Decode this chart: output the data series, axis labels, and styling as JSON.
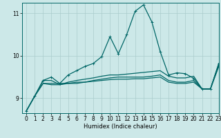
{
  "xlabel": "Humidex (Indice chaleur)",
  "background_color": "#cce8e8",
  "line_color": "#006666",
  "grid_color": "#aacccc",
  "xlim": [
    -0.5,
    23
  ],
  "ylim": [
    8.65,
    11.25
  ],
  "xticks": [
    0,
    1,
    2,
    3,
    4,
    5,
    6,
    7,
    8,
    9,
    10,
    11,
    12,
    13,
    14,
    15,
    16,
    17,
    18,
    19,
    20,
    21,
    22,
    23
  ],
  "yticks": [
    9,
    10,
    11
  ],
  "lines": [
    {
      "x": [
        0,
        1,
        2,
        3,
        4,
        5,
        6,
        7,
        8,
        9,
        10,
        11,
        12,
        13,
        14,
        15,
        16,
        17,
        18,
        19,
        20,
        21,
        22,
        23
      ],
      "y": [
        8.7,
        9.05,
        9.42,
        9.5,
        9.35,
        9.55,
        9.65,
        9.75,
        9.82,
        9.98,
        10.45,
        10.05,
        10.5,
        11.05,
        11.2,
        10.8,
        10.1,
        9.55,
        9.6,
        9.58,
        9.47,
        9.22,
        9.22,
        9.82
      ],
      "marker": "+"
    },
    {
      "x": [
        0,
        1,
        2,
        3,
        4,
        5,
        6,
        7,
        8,
        9,
        10,
        11,
        12,
        13,
        14,
        15,
        16,
        17,
        18,
        19,
        20,
        21,
        22,
        23
      ],
      "y": [
        8.7,
        9.05,
        9.42,
        9.42,
        9.32,
        9.38,
        9.42,
        9.45,
        9.48,
        9.52,
        9.55,
        9.55,
        9.57,
        9.59,
        9.61,
        9.63,
        9.65,
        9.52,
        9.48,
        9.48,
        9.52,
        9.22,
        9.22,
        9.82
      ],
      "marker": null
    },
    {
      "x": [
        0,
        1,
        2,
        3,
        4,
        5,
        6,
        7,
        8,
        9,
        10,
        11,
        12,
        13,
        14,
        15,
        16,
        17,
        18,
        19,
        20,
        21,
        22,
        23
      ],
      "y": [
        8.7,
        9.05,
        9.35,
        9.35,
        9.35,
        9.35,
        9.35,
        9.38,
        9.42,
        9.45,
        9.48,
        9.5,
        9.5,
        9.5,
        9.5,
        9.52,
        9.55,
        9.42,
        9.38,
        9.38,
        9.42,
        9.22,
        9.22,
        9.78
      ],
      "marker": null
    },
    {
      "x": [
        0,
        1,
        2,
        3,
        4,
        5,
        6,
        7,
        8,
        9,
        10,
        11,
        12,
        13,
        14,
        15,
        16,
        17,
        18,
        19,
        20,
        21,
        22,
        23
      ],
      "y": [
        8.7,
        9.05,
        9.35,
        9.32,
        9.32,
        9.35,
        9.38,
        9.38,
        9.4,
        9.42,
        9.44,
        9.45,
        9.45,
        9.46,
        9.46,
        9.48,
        9.5,
        9.38,
        9.35,
        9.35,
        9.38,
        9.22,
        9.22,
        9.75
      ],
      "marker": null
    }
  ]
}
